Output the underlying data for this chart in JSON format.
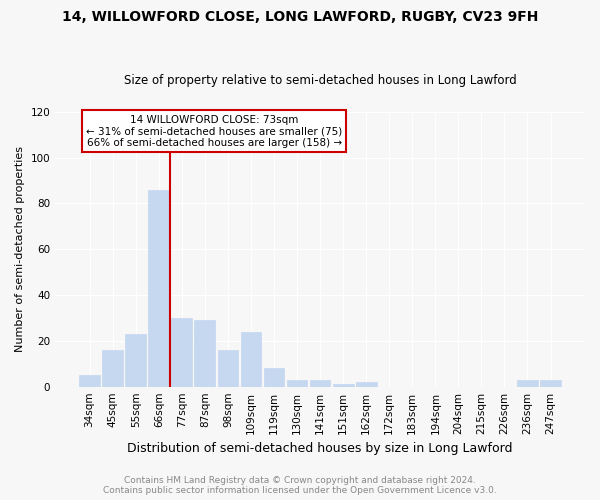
{
  "title": "14, WILLOWFORD CLOSE, LONG LAWFORD, RUGBY, CV23 9FH",
  "subtitle": "Size of property relative to semi-detached houses in Long Lawford",
  "xlabel": "Distribution of semi-detached houses by size in Long Lawford",
  "ylabel": "Number of semi-detached properties",
  "footer1": "Contains HM Land Registry data © Crown copyright and database right 2024.",
  "footer2": "Contains public sector information licensed under the Open Government Licence v3.0.",
  "categories": [
    "34sqm",
    "45sqm",
    "55sqm",
    "66sqm",
    "77sqm",
    "87sqm",
    "98sqm",
    "109sqm",
    "119sqm",
    "130sqm",
    "141sqm",
    "151sqm",
    "162sqm",
    "172sqm",
    "183sqm",
    "194sqm",
    "204sqm",
    "215sqm",
    "226sqm",
    "236sqm",
    "247sqm"
  ],
  "values": [
    5,
    16,
    23,
    86,
    30,
    29,
    16,
    24,
    8,
    3,
    3,
    1,
    2,
    0,
    0,
    0,
    0,
    0,
    0,
    3,
    3
  ],
  "bar_color": "#c5d8f0",
  "bar_edge_color": "#c5d8f0",
  "vline_index": 3,
  "vline_color": "#cc0000",
  "ylim": [
    0,
    120
  ],
  "yticks": [
    0,
    20,
    40,
    60,
    80,
    100,
    120
  ],
  "annotation_text": "14 WILLOWFORD CLOSE: 73sqm\n← 31% of semi-detached houses are smaller (75)\n66% of semi-detached houses are larger (158) →",
  "annotation_box_color": "#ffffff",
  "annotation_box_edge": "#cc0000",
  "background_color": "#f7f7f7",
  "title_fontsize": 10,
  "subtitle_fontsize": 8.5,
  "ylabel_fontsize": 8,
  "xlabel_fontsize": 9,
  "tick_fontsize": 7.5,
  "ann_fontsize": 7.5,
  "footer_fontsize": 6.5
}
